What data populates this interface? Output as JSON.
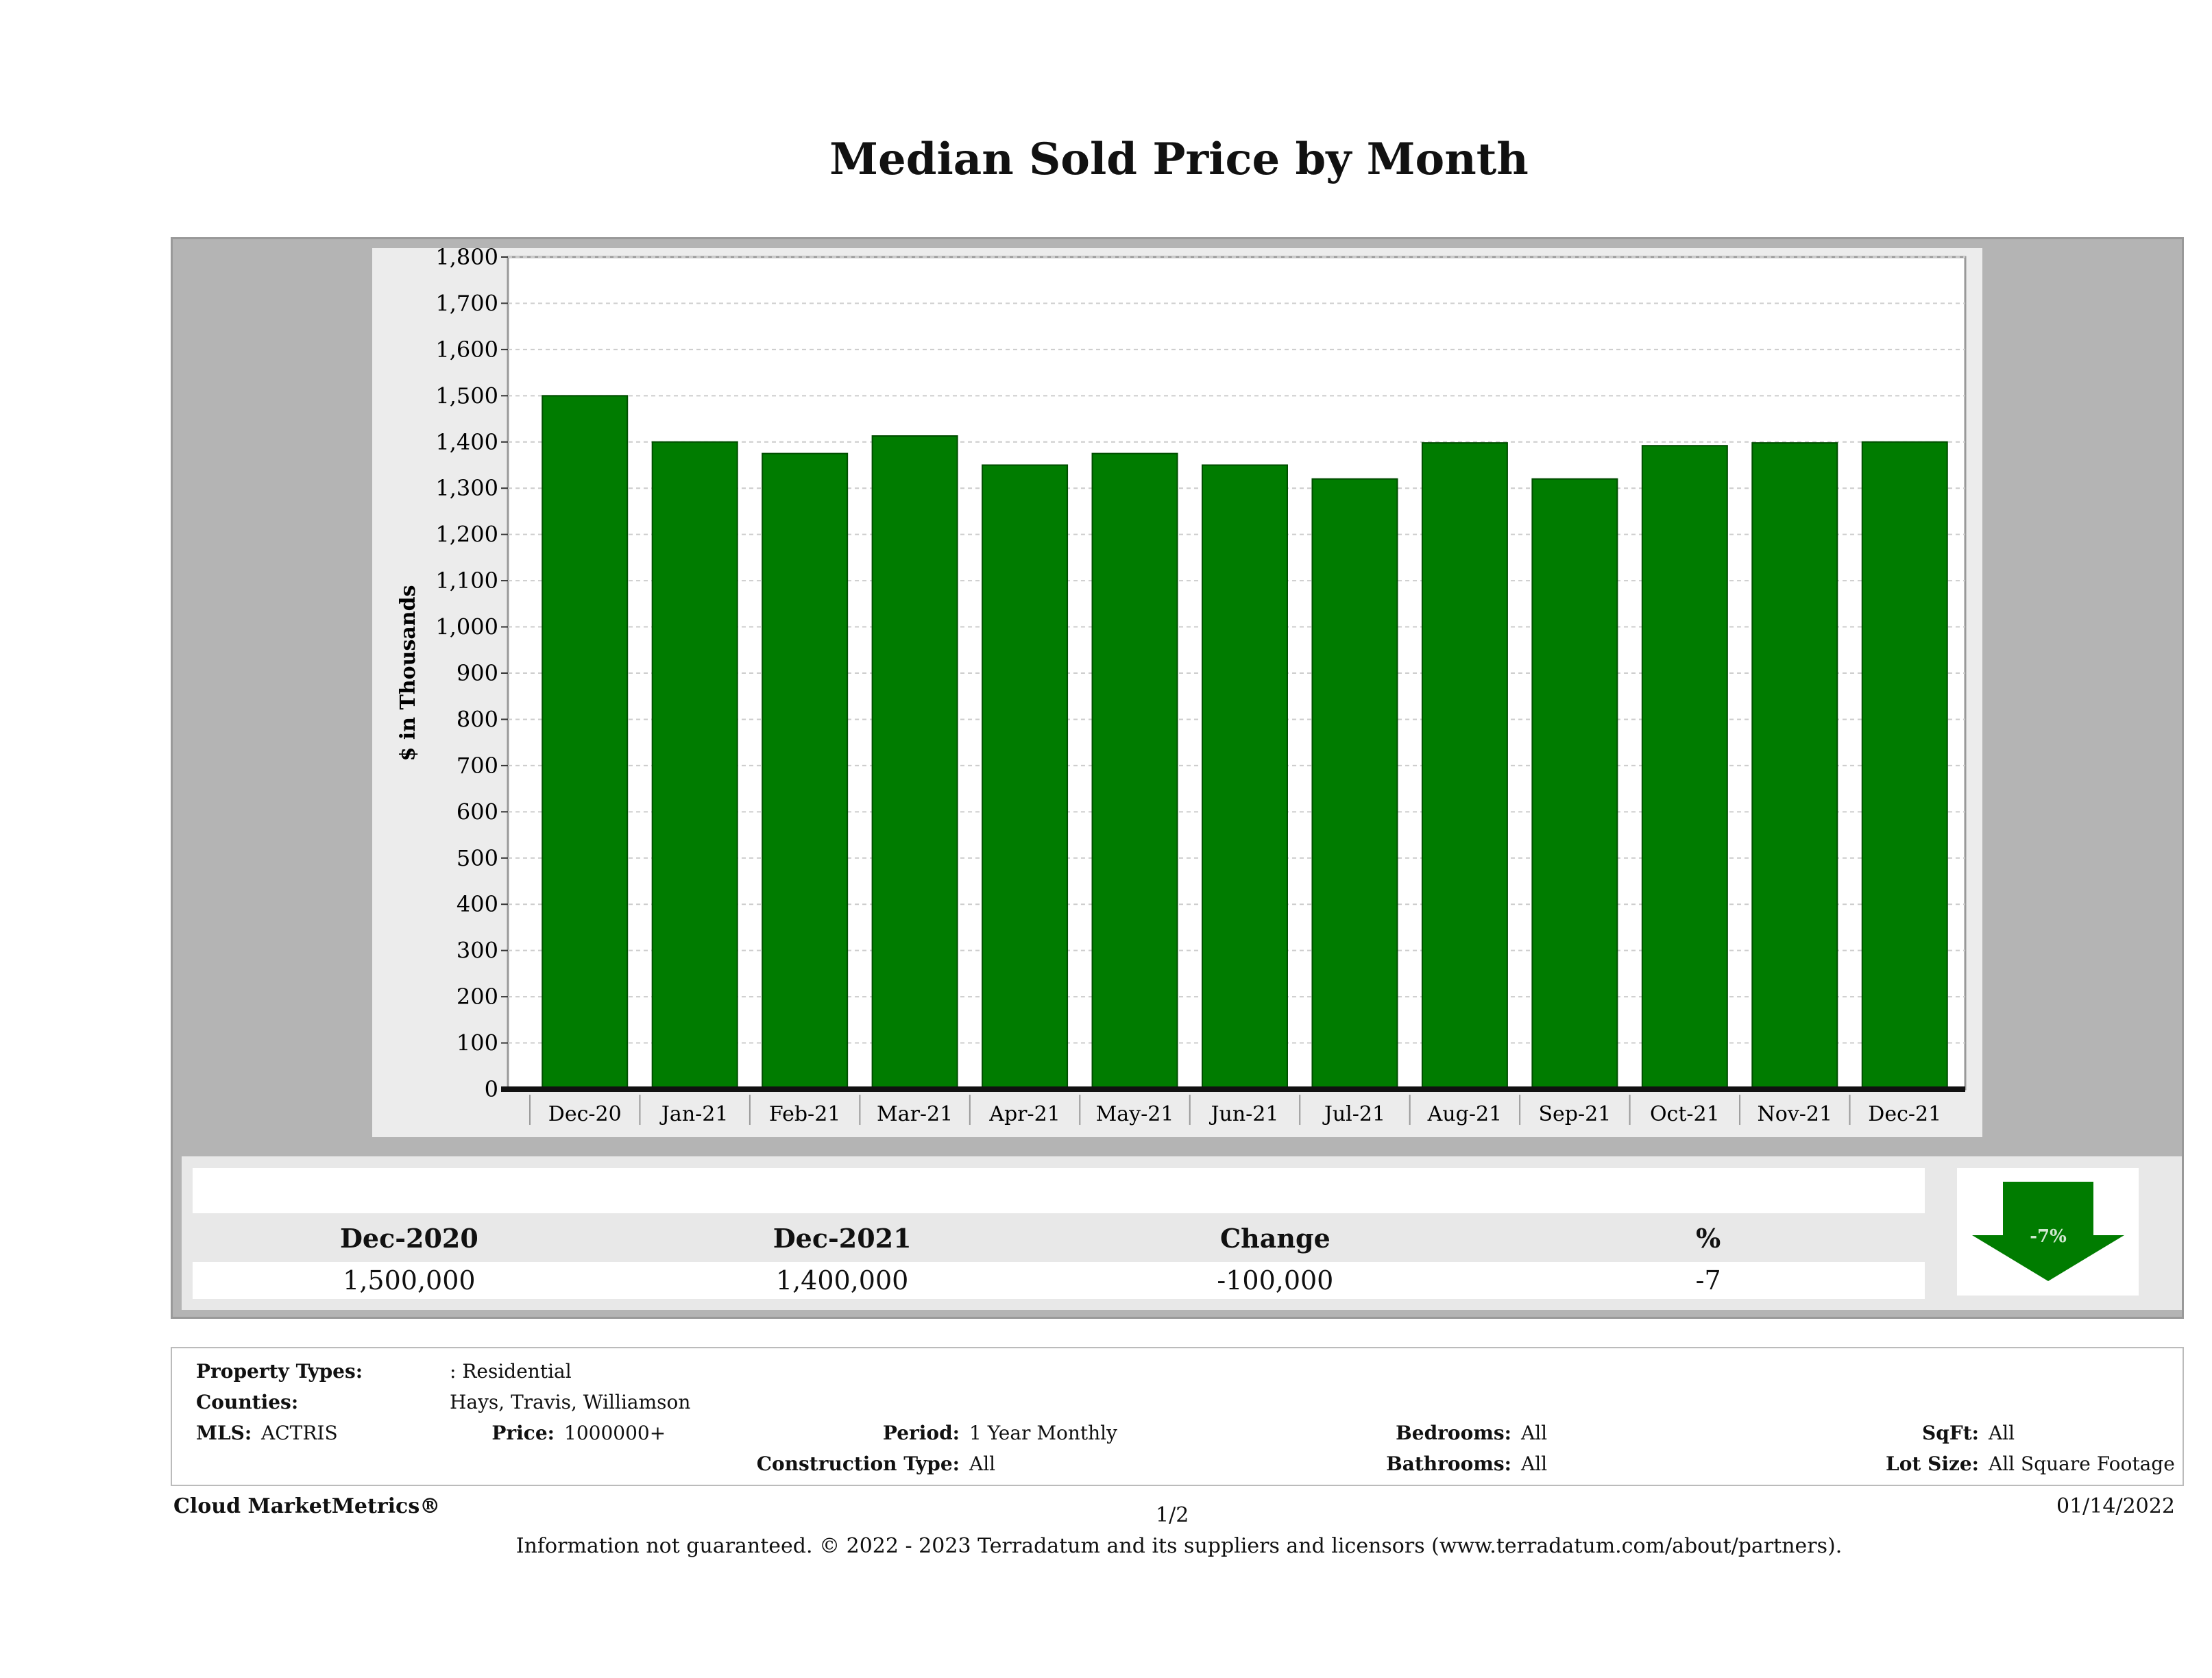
{
  "title": "Median Sold Price by Month",
  "chart_data": {
    "type": "bar",
    "title": "Median Sold Price by Month",
    "ylabel": "$ in Thousands",
    "xlabel": "",
    "ylim": [
      0,
      1800
    ],
    "yticks": [
      "0",
      "100",
      "200",
      "300",
      "400",
      "500",
      "600",
      "700",
      "800",
      "900",
      "1,000",
      "1,100",
      "1,200",
      "1,300",
      "1,400",
      "1,500",
      "1,600",
      "1,700",
      "1,800"
    ],
    "categories": [
      "Dec-20",
      "Jan-21",
      "Feb-21",
      "Mar-21",
      "Apr-21",
      "May-21",
      "Jun-21",
      "Jul-21",
      "Aug-21",
      "Sep-21",
      "Oct-21",
      "Nov-21",
      "Dec-21"
    ],
    "values": [
      1500,
      1400,
      1375,
      1413,
      1350,
      1375,
      1350,
      1320,
      1398,
      1320,
      1392,
      1398,
      1400
    ],
    "grid": true,
    "bar_color": "#007c00"
  },
  "summary": {
    "headers": [
      "Dec-2020",
      "Dec-2021",
      "Change",
      "%"
    ],
    "values": [
      "1,500,000",
      "1,400,000",
      "-100,000",
      "-7"
    ],
    "badge": "-7%"
  },
  "info": {
    "property_types_label": "Property Types:",
    "property_types": ": Residential",
    "counties_label": "Counties:",
    "counties": "Hays, Travis, Williamson",
    "mls_label": "MLS:",
    "mls": "ACTRIS",
    "price_label": "Price:",
    "price": "1000000+",
    "period_label": "Period:",
    "period": "1 Year Monthly",
    "construction_label": "Construction Type:",
    "construction": "All",
    "bedrooms_label": "Bedrooms:",
    "bedrooms": "All",
    "bathrooms_label": "Bathrooms:",
    "bathrooms": "All",
    "sqft_label": "SqFt:",
    "sqft": "All",
    "lot_label": "Lot Size:",
    "lot": "All Square Footage"
  },
  "footer": {
    "brand": "Cloud MarketMetrics®",
    "page": "1/2",
    "date": "01/14/2022",
    "disclaimer": "Information not guaranteed. © 2022 - 2023 Terradatum and its suppliers and licensors (www.terradatum.com/about/partners)."
  }
}
